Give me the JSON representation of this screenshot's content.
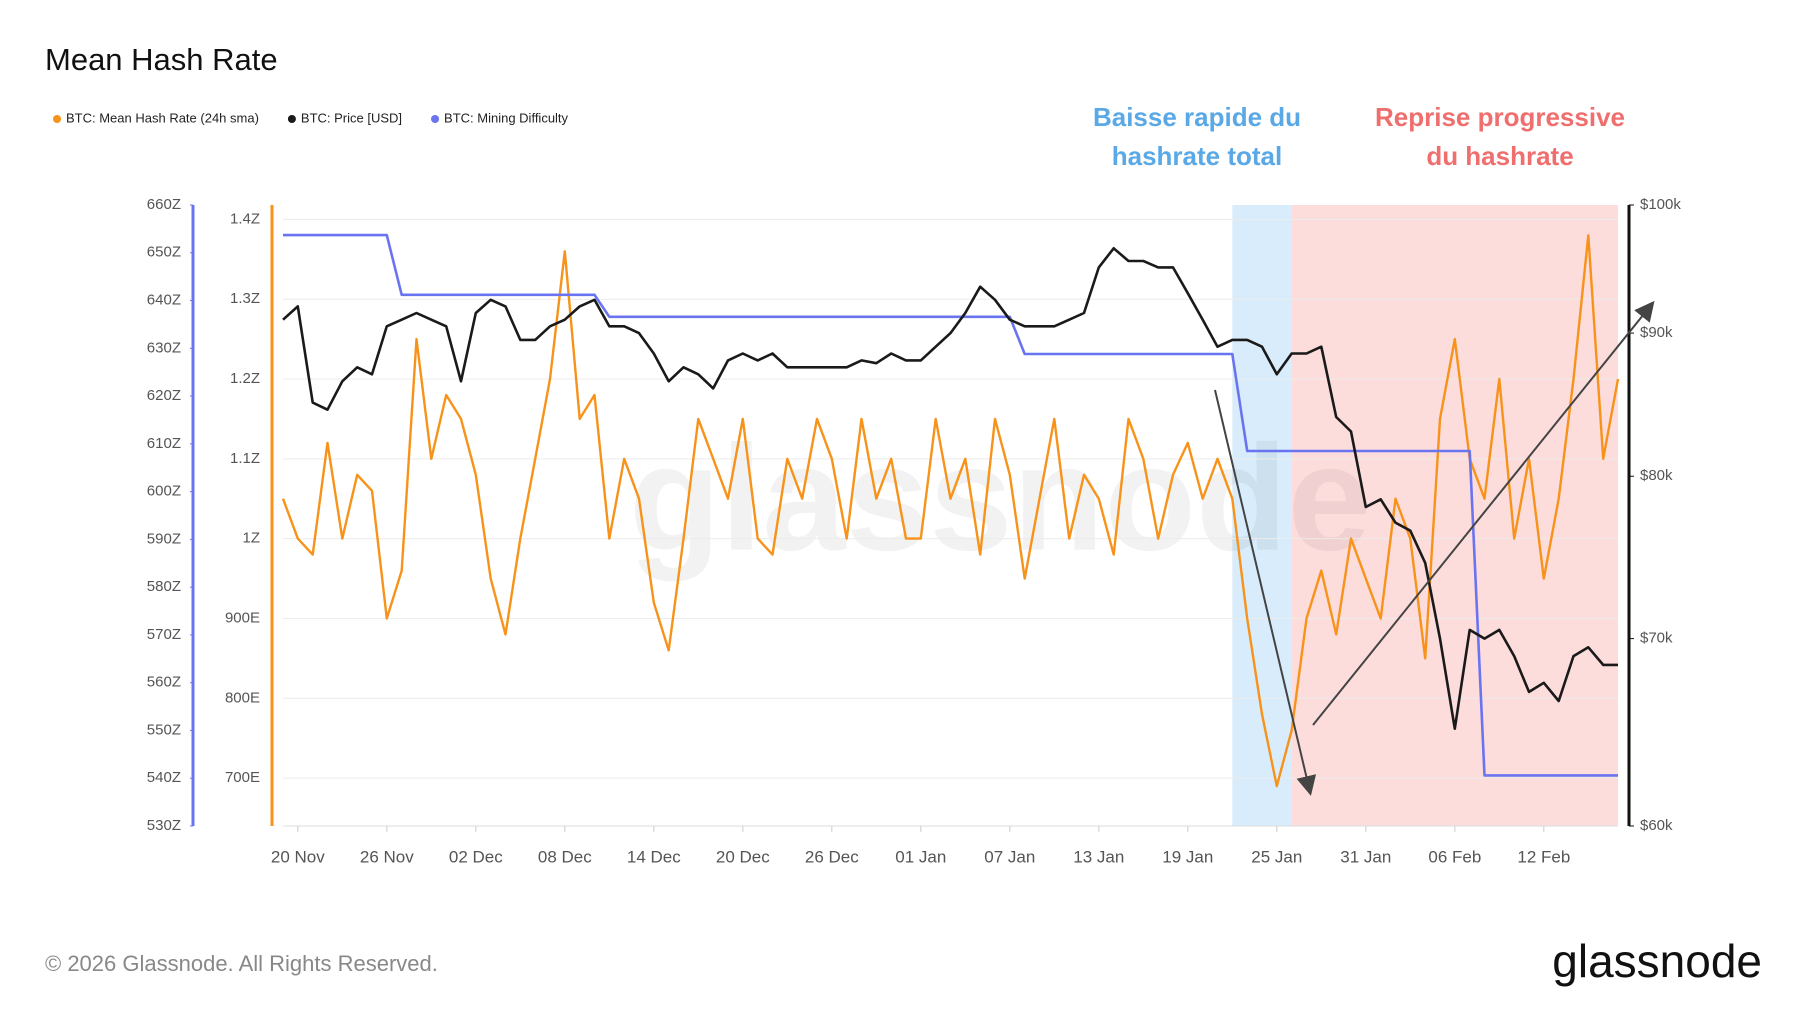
{
  "chart_data": {
    "type": "line",
    "title": "Mean Hash Rate",
    "x": [
      "19 Nov",
      "20 Nov",
      "21 Nov",
      "22 Nov",
      "23 Nov",
      "24 Nov",
      "25 Nov",
      "26 Nov",
      "27 Nov",
      "28 Nov",
      "29 Nov",
      "30 Nov",
      "01 Dec",
      "02 Dec",
      "03 Dec",
      "04 Dec",
      "05 Dec",
      "06 Dec",
      "07 Dec",
      "08 Dec",
      "09 Dec",
      "10 Dec",
      "11 Dec",
      "12 Dec",
      "13 Dec",
      "14 Dec",
      "15 Dec",
      "16 Dec",
      "17 Dec",
      "18 Dec",
      "19 Dec",
      "20 Dec",
      "21 Dec",
      "22 Dec",
      "23 Dec",
      "24 Dec",
      "25 Dec",
      "26 Dec",
      "27 Dec",
      "28 Dec",
      "29 Dec",
      "30 Dec",
      "31 Dec",
      "01 Jan",
      "02 Jan",
      "03 Jan",
      "04 Jan",
      "05 Jan",
      "06 Jan",
      "07 Jan",
      "08 Jan",
      "09 Jan",
      "10 Jan",
      "11 Jan",
      "12 Jan",
      "13 Jan",
      "14 Jan",
      "15 Jan",
      "16 Jan",
      "17 Jan",
      "18 Jan",
      "19 Jan",
      "20 Jan",
      "21 Jan",
      "22 Jan",
      "23 Jan",
      "24 Jan",
      "25 Jan",
      "26 Jan",
      "27 Jan",
      "28 Jan",
      "29 Jan",
      "30 Jan",
      "31 Jan",
      "01 Feb",
      "02 Feb",
      "03 Feb",
      "04 Feb",
      "05 Feb",
      "06 Feb",
      "07 Feb",
      "08 Feb",
      "09 Feb",
      "10 Feb",
      "11 Feb",
      "12 Feb",
      "13 Feb",
      "14 Feb",
      "15 Feb",
      "16 Feb",
      "17 Feb"
    ],
    "xticks": [
      "20 Nov",
      "26 Nov",
      "02 Dec",
      "08 Dec",
      "14 Dec",
      "20 Dec",
      "26 Dec",
      "01 Jan",
      "07 Jan",
      "13 Jan",
      "19 Jan",
      "25 Jan",
      "31 Jan",
      "06 Feb",
      "12 Feb"
    ],
    "series": [
      {
        "name": "BTC: Mean Hash Rate (24h sma)",
        "color": "#f7931a",
        "axis": "y",
        "values": [
          1050,
          1000,
          980,
          1120,
          1000,
          1080,
          1060,
          900,
          960,
          1250,
          1100,
          1180,
          1150,
          1080,
          950,
          880,
          1000,
          1100,
          1200,
          1360,
          1150,
          1180,
          1000,
          1100,
          1050,
          920,
          860,
          1000,
          1150,
          1100,
          1050,
          1150,
          1000,
          980,
          1100,
          1050,
          1150,
          1100,
          1000,
          1150,
          1050,
          1100,
          1000,
          1000,
          1150,
          1050,
          1100,
          980,
          1150,
          1080,
          950,
          1050,
          1150,
          1000,
          1080,
          1050,
          980,
          1150,
          1100,
          1000,
          1080,
          1120,
          1050,
          1100,
          1050,
          900,
          780,
          690,
          760,
          900,
          960,
          880,
          1000,
          950,
          900,
          1050,
          1000,
          850,
          1150,
          1250,
          1100,
          1050,
          1200,
          1000,
          1100,
          950,
          1050,
          1200,
          1380,
          1100,
          1200
        ]
      },
      {
        "name": "BTC: Price [USD]",
        "color": "#1a1a1a",
        "axis": "y2",
        "values": [
          91000,
          92000,
          85000,
          84500,
          86500,
          87500,
          87000,
          90500,
          91000,
          91500,
          91000,
          90500,
          86500,
          91500,
          92500,
          92000,
          89500,
          89500,
          90500,
          91000,
          92000,
          92500,
          90500,
          90500,
          90000,
          88500,
          86500,
          87500,
          87000,
          86000,
          88000,
          88500,
          88000,
          88500,
          87500,
          87500,
          87500,
          87500,
          87500,
          88000,
          87800,
          88500,
          88000,
          88000,
          89000,
          90000,
          91500,
          93500,
          92500,
          91000,
          90500,
          90500,
          90500,
          91000,
          91500,
          95000,
          96500,
          95500,
          95500,
          95000,
          95000,
          93000,
          91000,
          89000,
          89500,
          89500,
          89000,
          87000,
          88500,
          88500,
          89000,
          84000,
          83000,
          78000,
          78500,
          77000,
          76500,
          74500,
          70000,
          65000,
          70500,
          70000,
          70500,
          69000,
          67000,
          67500,
          66500,
          69000,
          69500,
          68500,
          68500
        ]
      },
      {
        "name": "BTC: Mining Difficulty",
        "color": "#6b74f0",
        "axis": "y3",
        "values": [
          653.7,
          653.7,
          653.7,
          653.7,
          653.7,
          653.7,
          653.7,
          653.7,
          641.2,
          641.2,
          641.2,
          641.2,
          641.2,
          641.2,
          641.2,
          641.2,
          641.2,
          641.2,
          641.2,
          641.2,
          641.2,
          641.2,
          636.6,
          636.6,
          636.6,
          636.6,
          636.6,
          636.6,
          636.6,
          636.6,
          636.6,
          636.6,
          636.6,
          636.6,
          636.6,
          636.6,
          636.6,
          636.6,
          636.6,
          636.6,
          636.6,
          636.6,
          636.6,
          636.6,
          636.6,
          636.6,
          636.6,
          636.6,
          636.6,
          636.6,
          628.8,
          628.8,
          628.8,
          628.8,
          628.8,
          628.8,
          628.8,
          628.8,
          628.8,
          628.8,
          628.8,
          628.8,
          628.8,
          628.8,
          628.8,
          608.5,
          608.5,
          608.5,
          608.5,
          608.5,
          608.5,
          608.5,
          608.5,
          608.5,
          608.5,
          608.5,
          608.5,
          608.5,
          608.5,
          608.5,
          608.5,
          540.6,
          540.6,
          540.6,
          540.6,
          540.6,
          540.6,
          540.6,
          540.6,
          540.6,
          540.6
        ]
      }
    ],
    "ylim": [
      640,
      1418
    ],
    "yticks": [
      {
        "value": 700,
        "label": "700E"
      },
      {
        "value": 800,
        "label": "800E"
      },
      {
        "value": 900,
        "label": "900E"
      },
      {
        "value": 1000,
        "label": "1Z"
      },
      {
        "value": 1100,
        "label": "1.1Z"
      },
      {
        "value": 1200,
        "label": "1.2Z"
      },
      {
        "value": 1300,
        "label": "1.3Z"
      },
      {
        "value": 1400,
        "label": "1.4Z"
      }
    ],
    "y2lim": [
      60000,
      100000
    ],
    "y2log": true,
    "y2ticks": [
      {
        "value": 60000,
        "label": "$60k"
      },
      {
        "value": 70000,
        "label": "$70k"
      },
      {
        "value": 80000,
        "label": "$80k"
      },
      {
        "value": 90000,
        "label": "$90k"
      },
      {
        "value": 100000,
        "label": "$100k"
      }
    ],
    "y3lim": [
      530,
      660
    ],
    "y3ticks": [
      {
        "value": 530,
        "label": "530Z"
      },
      {
        "value": 540,
        "label": "540Z"
      },
      {
        "value": 550,
        "label": "550Z"
      },
      {
        "value": 560,
        "label": "560Z"
      },
      {
        "value": 570,
        "label": "570Z"
      },
      {
        "value": 580,
        "label": "580Z"
      },
      {
        "value": 590,
        "label": "590Z"
      },
      {
        "value": 600,
        "label": "600Z"
      },
      {
        "value": 610,
        "label": "610Z"
      },
      {
        "value": 620,
        "label": "620Z"
      },
      {
        "value": 630,
        "label": "630Z"
      },
      {
        "value": 640,
        "label": "640Z"
      },
      {
        "value": 650,
        "label": "650Z"
      },
      {
        "value": 660,
        "label": "660Z"
      }
    ],
    "grid": true,
    "annotations": [
      {
        "text": [
          "Baisse rapide du",
          "hashrate total"
        ],
        "x_start": "22 Jan",
        "x_end": "26 Jan",
        "color": "#5aa9e6",
        "band_color": "#d8ecfb"
      },
      {
        "text": [
          "Reprise progressive",
          "du hashrate"
        ],
        "x_start": "26 Jan",
        "x_end": "17 Feb",
        "color": "#ef6f6f",
        "band_color": "#fddcdc"
      }
    ]
  },
  "watermark": "glassnode",
  "footer": {
    "copyright": "© 2026 Glassnode. All Rights Reserved.",
    "logo": "glassnode"
  }
}
